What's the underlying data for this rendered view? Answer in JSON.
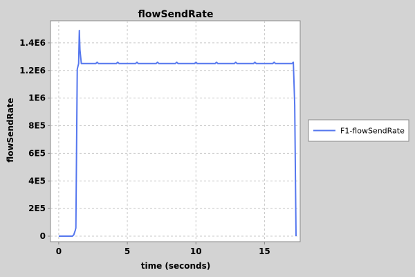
{
  "chart_data": {
    "type": "line",
    "title": "flowSendRate",
    "xlabel": "time (seconds)",
    "ylabel": "flowSendRate",
    "xlim": [
      -0.6,
      17.6
    ],
    "ylim": [
      -40000,
      1560000
    ],
    "x_ticks": [
      0,
      5,
      10,
      15
    ],
    "x_tick_labels": [
      "0",
      "5",
      "10",
      "15"
    ],
    "y_ticks": [
      0,
      200000,
      400000,
      600000,
      800000,
      1000000,
      1200000,
      1400000
    ],
    "y_tick_labels": [
      "0",
      "2E5",
      "4E5",
      "6E5",
      "8E5",
      "1E6",
      "1.2E6",
      "1.4E6"
    ],
    "grid": true,
    "legend_position": "right",
    "series": [
      {
        "name": "F1-flowSendRate",
        "color": "#5577ee",
        "x": [
          0.0,
          1.0,
          1.1,
          1.2,
          1.25,
          1.35,
          1.45,
          1.5,
          1.55,
          1.65,
          2.7,
          2.8,
          2.9,
          4.2,
          4.3,
          4.4,
          5.6,
          5.7,
          5.8,
          7.1,
          7.2,
          7.3,
          8.5,
          8.6,
          8.7,
          9.9,
          10.0,
          10.1,
          11.4,
          11.5,
          11.6,
          12.8,
          12.9,
          13.0,
          14.2,
          14.3,
          14.4,
          15.6,
          15.7,
          15.8,
          17.0,
          17.1,
          17.2,
          17.3
        ],
        "y": [
          0,
          0,
          10000,
          40000,
          60000,
          1210000,
          1250000,
          1490000,
          1350000,
          1250000,
          1250000,
          1260000,
          1250000,
          1250000,
          1260000,
          1250000,
          1250000,
          1260000,
          1250000,
          1250000,
          1260000,
          1250000,
          1250000,
          1260000,
          1250000,
          1250000,
          1260000,
          1250000,
          1250000,
          1260000,
          1250000,
          1250000,
          1260000,
          1250000,
          1250000,
          1260000,
          1250000,
          1250000,
          1260000,
          1250000,
          1250000,
          1260000,
          950000,
          0
        ]
      }
    ]
  }
}
